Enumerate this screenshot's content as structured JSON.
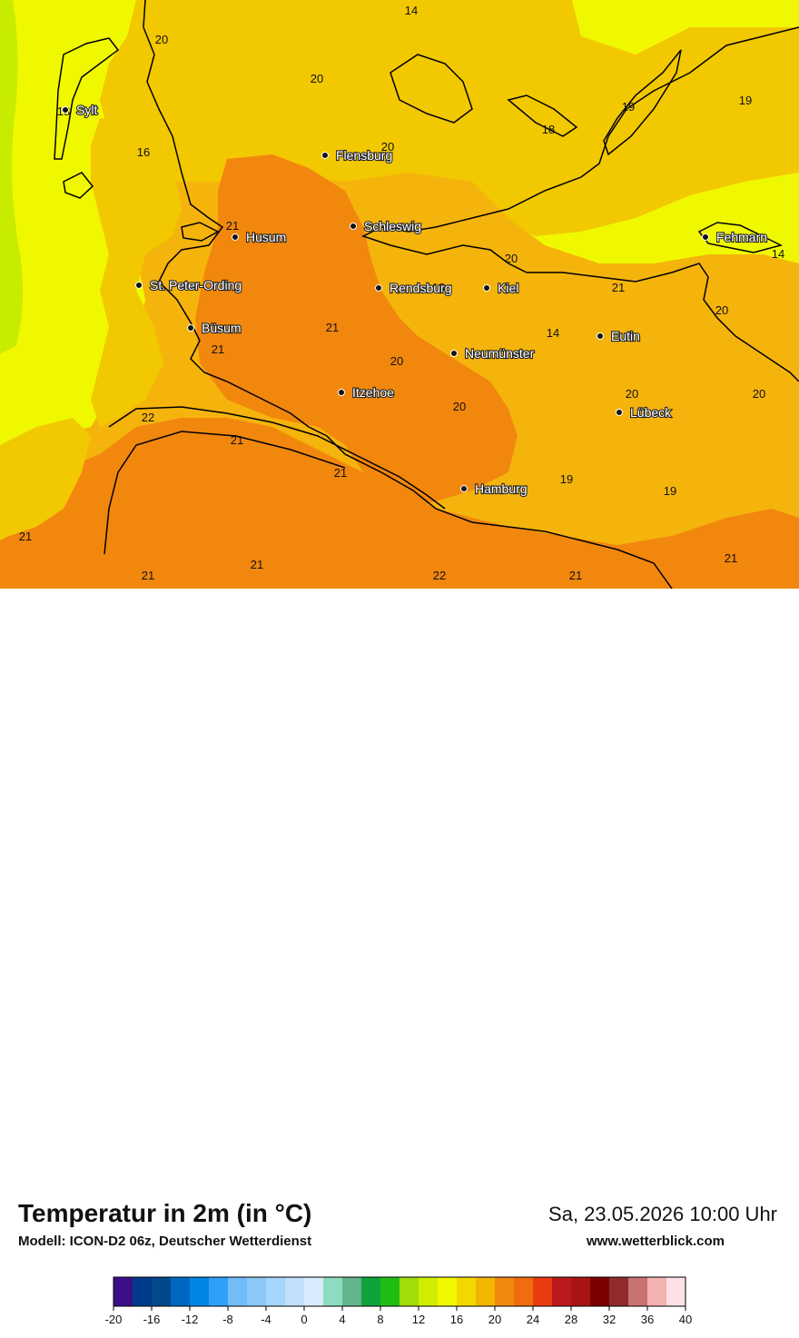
{
  "title": "Temperatur in 2m (in °C)",
  "model": "Modell: ICON-D2 06z, Deutscher Wetterdienst",
  "datetime": "Sa, 23.05.2026 10:00 Uhr",
  "website": "www.wetterblick.com",
  "colors": {
    "cool_green": "#c8ec00",
    "yellow": "#f0f800",
    "light_orange": "#f2c800",
    "orange": "#f5b40c",
    "deep_orange": "#f2870e",
    "coastline": "#000000"
  },
  "cities": [
    {
      "name": "Sylt"
    },
    {
      "name": "Flensburg"
    },
    {
      "name": "Schleswig"
    },
    {
      "name": "Husum"
    },
    {
      "name": "St. Peter-Ording"
    },
    {
      "name": "Rendsburg"
    },
    {
      "name": "Kiel"
    },
    {
      "name": "Fehmarn"
    },
    {
      "name": "Büsum"
    },
    {
      "name": "Neumünster"
    },
    {
      "name": "Eutin"
    },
    {
      "name": "Itzehoe"
    },
    {
      "name": "Lübeck"
    },
    {
      "name": "Hamburg"
    }
  ],
  "value_labels": [
    "14",
    "20",
    "20",
    "18",
    "16",
    "20",
    "19",
    "18",
    "19",
    "21",
    "20",
    "14",
    "21",
    "20",
    "21",
    "14",
    "18",
    "21",
    "20",
    "20",
    "20",
    "20",
    "22",
    "21",
    "21",
    "19",
    "19",
    "21",
    "21",
    "21",
    "22",
    "21",
    "21"
  ],
  "legend": {
    "colors": [
      "#3c0f8a",
      "#003a8c",
      "#004a8a",
      "#0068c0",
      "#0086e6",
      "#2ea0f8",
      "#72bcf8",
      "#8cc8f8",
      "#a6d4fa",
      "#c2e0fc",
      "#d8ecfe",
      "#8edcc0",
      "#62b48c",
      "#0ea43a",
      "#20be14",
      "#a2dc0a",
      "#d0ec00",
      "#f0f800",
      "#f2d800",
      "#f2b600",
      "#f08810",
      "#f06c10",
      "#e83c10",
      "#bc1a1a",
      "#a81414",
      "#7c0000",
      "#902c2c",
      "#c87272",
      "#f4b2b2",
      "#fce0e6"
    ],
    "ticks": [
      "-20",
      "-16",
      "-12",
      "-8",
      "-4",
      "0",
      "4",
      "8",
      "12",
      "16",
      "20",
      "24",
      "28",
      "32",
      "36",
      "40"
    ]
  }
}
